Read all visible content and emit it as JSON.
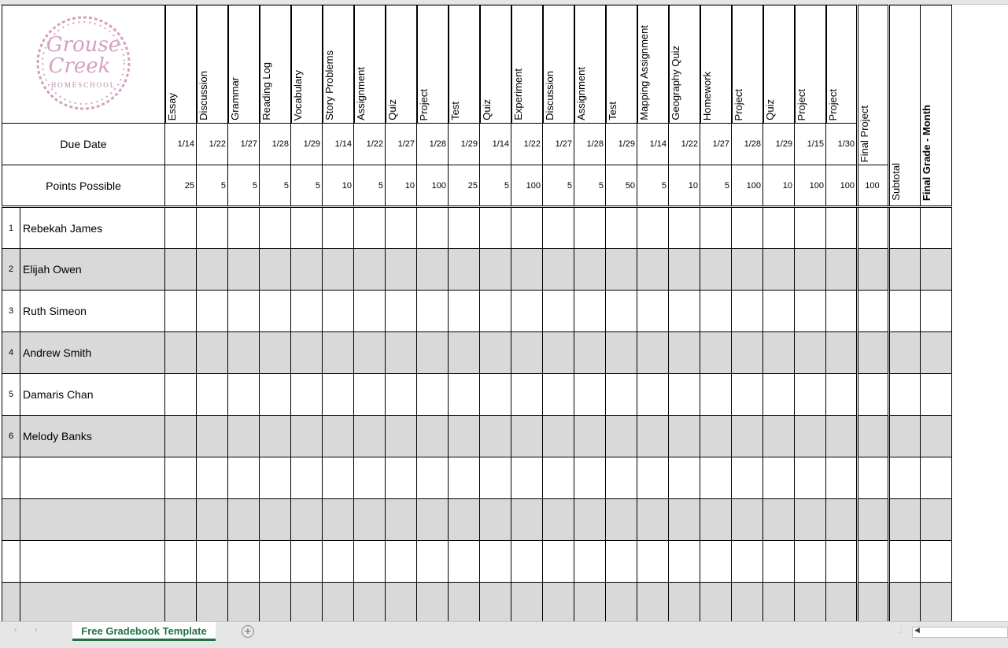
{
  "logo": {
    "line1": "Grouse",
    "line2": "Creek",
    "line3": "HOMESCHOOL",
    "color": "#d5a0bf"
  },
  "labels": {
    "due_date": "Due Date",
    "points_possible": "Points Possible"
  },
  "assignments": [
    {
      "name": "Essay",
      "due": "1/14",
      "points": "25"
    },
    {
      "name": "Discussion",
      "due": "1/22",
      "points": "5"
    },
    {
      "name": "Grammar",
      "due": "1/27",
      "points": "5"
    },
    {
      "name": "Reading Log",
      "due": "1/28",
      "points": "5"
    },
    {
      "name": "Vocabulary",
      "due": "1/29",
      "points": "5"
    },
    {
      "name": "Story Problems",
      "due": "1/14",
      "points": "10"
    },
    {
      "name": "Assignment",
      "due": "1/22",
      "points": "5"
    },
    {
      "name": "Quiz",
      "due": "1/27",
      "points": "10"
    },
    {
      "name": "Project",
      "due": "1/28",
      "points": "100"
    },
    {
      "name": "Test",
      "due": "1/29",
      "points": "25"
    },
    {
      "name": "Quiz",
      "due": "1/14",
      "points": "5"
    },
    {
      "name": "Experiment",
      "due": "1/22",
      "points": "100"
    },
    {
      "name": "Discussion",
      "due": "1/27",
      "points": "5"
    },
    {
      "name": "Assignment",
      "due": "1/28",
      "points": "5"
    },
    {
      "name": "Test",
      "due": "1/29",
      "points": "50"
    },
    {
      "name": "Mapping Assignment",
      "due": "1/14",
      "points": "5"
    },
    {
      "name": "Geography Quiz",
      "due": "1/22",
      "points": "10"
    },
    {
      "name": "Homework",
      "due": "1/27",
      "points": "5"
    },
    {
      "name": "Project",
      "due": "1/28",
      "points": "100"
    },
    {
      "name": "Quiz",
      "due": "1/29",
      "points": "10"
    },
    {
      "name": "Project",
      "due": "1/15",
      "points": "100"
    },
    {
      "name": "Project",
      "due": "1/30",
      "points": "100"
    }
  ],
  "final_project": {
    "name": "Final Project",
    "points": "100"
  },
  "subtotal": "Subtotal",
  "final_grade": {
    "bold": "Final",
    "rest": " Grade - Month"
  },
  "students": [
    {
      "num": "1",
      "name": "Rebekah James"
    },
    {
      "num": "2",
      "name": "Elijah Owen"
    },
    {
      "num": "3",
      "name": "Ruth Simeon"
    },
    {
      "num": "4",
      "name": "Andrew Smith"
    },
    {
      "num": "5",
      "name": "Damaris Chan"
    },
    {
      "num": "6",
      "name": "Melody Banks"
    },
    {
      "num": "",
      "name": ""
    },
    {
      "num": "",
      "name": ""
    },
    {
      "num": "",
      "name": ""
    },
    {
      "num": "",
      "name": ""
    }
  ],
  "sheet_tab": "Free Gradebook Template",
  "colors": {
    "row_alt": "#d9d9d9",
    "tab_accent": "#217346"
  }
}
